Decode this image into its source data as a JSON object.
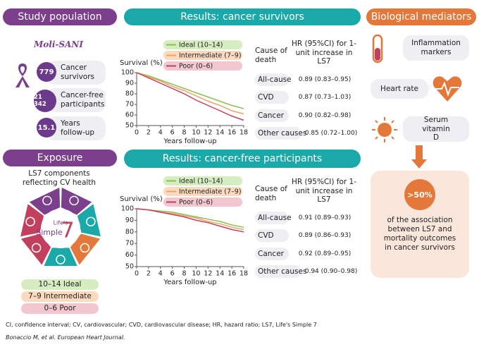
{
  "chart_data": [
    {
      "type": "line",
      "title": "Results: cancer survivors",
      "ylabel": "Survival (%)",
      "xlabel": "Years follow-up",
      "x": [
        0,
        2,
        4,
        6,
        8,
        10,
        12,
        14,
        16,
        18
      ],
      "series": [
        {
          "name": "Ideal (10–14)",
          "color": "#8cc152",
          "values": [
            100,
            97,
            93,
            89,
            85,
            81,
            77,
            73,
            69,
            66
          ]
        },
        {
          "name": "Intermediate (7–9)",
          "color": "#f0a467",
          "values": [
            100,
            96,
            92,
            87,
            83,
            78,
            73,
            69,
            64,
            61
          ]
        },
        {
          "name": "Poor (0–6)",
          "color": "#c2405e",
          "values": [
            100,
            95,
            90,
            85,
            80,
            74,
            69,
            64,
            59,
            55
          ]
        }
      ],
      "xlim": [
        0,
        18
      ],
      "xticks": [
        0,
        2,
        4,
        6,
        8,
        10,
        12,
        14,
        16,
        18
      ],
      "ylim": [
        50,
        100
      ],
      "yticks": [
        50,
        60,
        70,
        80,
        90,
        100
      ]
    },
    {
      "type": "line",
      "title": "Results: cancer-free participants",
      "ylabel": "Survival (%)",
      "xlabel": "Years follow-up",
      "x": [
        0,
        2,
        4,
        6,
        8,
        10,
        12,
        14,
        16,
        18
      ],
      "series": [
        {
          "name": "Ideal (10–14)",
          "color": "#8cc152",
          "values": [
            100,
            99,
            98,
            97,
            95,
            93,
            91,
            89,
            86,
            84
          ]
        },
        {
          "name": "Intermediate (7–9)",
          "color": "#f0a467",
          "values": [
            100,
            99,
            97,
            96,
            94,
            92,
            89,
            87,
            84,
            82
          ]
        },
        {
          "name": "Poor (0–6)",
          "color": "#c2405e",
          "values": [
            100,
            99,
            97,
            95,
            93,
            90,
            88,
            85,
            82,
            80
          ]
        }
      ],
      "xlim": [
        0,
        18
      ],
      "xticks": [
        0,
        2,
        4,
        6,
        8,
        10,
        12,
        14,
        16,
        18
      ],
      "ylim": [
        50,
        100
      ],
      "yticks": [
        50,
        60,
        70,
        80,
        90,
        100
      ]
    }
  ],
  "tables": [
    {
      "header": [
        "Cause of death",
        "HR (95%CI) for 1-unit increase in LS7"
      ],
      "rows": [
        [
          "All-cause",
          "0.89 (0.83–0.95)"
        ],
        [
          "CVD",
          "0.87 (0.73–1.03)"
        ],
        [
          "Cancer",
          "0.90 (0.82–0.98)"
        ],
        [
          "Other causes",
          "0.85 (0.72–1.00)"
        ]
      ]
    },
    {
      "header": [
        "Cause of death",
        "HR (95%CI) for 1-unit increase in LS7"
      ],
      "rows": [
        [
          "All-cause",
          "0.91 (0.89–0.93)"
        ],
        [
          "CVD",
          "0.89 (0.86–0.93)"
        ],
        [
          "Cancer",
          "0.92 (0.89–0.95)"
        ],
        [
          "Other causes",
          "0.94 (0.90–0.98)"
        ]
      ]
    }
  ],
  "study_population": {
    "title": "Study population",
    "logo": "Moli-SANI",
    "stats": [
      {
        "value": "779",
        "label": "Cancer survivors"
      },
      {
        "value": "21 342",
        "label": "Cancer-free participants"
      },
      {
        "value": "15.1",
        "label": "Years follow-up"
      }
    ]
  },
  "exposure": {
    "title": "Exposure",
    "subtitle": "LS7 components reflecting CV health",
    "center": [
      "Life's",
      "Simple",
      "7"
    ],
    "categories": [
      "10–14 Ideal",
      "7–9 Intermediate",
      "0–6 Poor"
    ]
  },
  "mediators": {
    "title": "Biological mediators",
    "items": [
      "Inflammation markers",
      "Heart rate",
      "Serum vitamin D"
    ],
    "result": ">50%",
    "result_text": "of the association between LS7 and mortality outcomes in cancer survivors"
  },
  "footnote": "CI, confidence interval; CV, cardiovascular; CVD, cardiovascular disease; HR, hazard ratio; LS7, Life's Simple 7",
  "citation": "Bonaccio M, et al. European Heart Journal."
}
